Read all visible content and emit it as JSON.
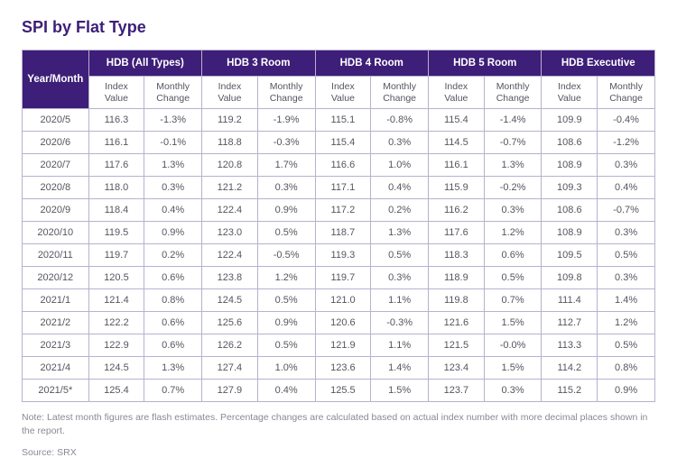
{
  "title": "SPI by Flat Type",
  "title_color": "#3d1e78",
  "header_bg": "#3d1e78",
  "border_color": "#b9b0cf",
  "text_color": "#555560",
  "note_color": "#8b8894",
  "ym_header": "Year/Month",
  "sub_iv": "Index Value",
  "sub_mc": "Monthly Change",
  "groups": [
    "HDB (All Types)",
    "HDB 3 Room",
    "HDB 4 Room",
    "HDB 5 Room",
    "HDB Executive"
  ],
  "rows": [
    {
      "ym": "2020/5",
      "v": [
        "116.3",
        "-1.3%",
        "119.2",
        "-1.9%",
        "115.1",
        "-0.8%",
        "115.4",
        "-1.4%",
        "109.9",
        "-0.4%"
      ]
    },
    {
      "ym": "2020/6",
      "v": [
        "116.1",
        "-0.1%",
        "118.8",
        "-0.3%",
        "115.4",
        "0.3%",
        "114.5",
        "-0.7%",
        "108.6",
        "-1.2%"
      ]
    },
    {
      "ym": "2020/7",
      "v": [
        "117.6",
        "1.3%",
        "120.8",
        "1.7%",
        "116.6",
        "1.0%",
        "116.1",
        "1.3%",
        "108.9",
        "0.3%"
      ]
    },
    {
      "ym": "2020/8",
      "v": [
        "118.0",
        "0.3%",
        "121.2",
        "0.3%",
        "117.1",
        "0.4%",
        "115.9",
        "-0.2%",
        "109.3",
        "0.4%"
      ]
    },
    {
      "ym": "2020/9",
      "v": [
        "118.4",
        "0.4%",
        "122.4",
        "0.9%",
        "117.2",
        "0.2%",
        "116.2",
        "0.3%",
        "108.6",
        "-0.7%"
      ]
    },
    {
      "ym": "2020/10",
      "v": [
        "119.5",
        "0.9%",
        "123.0",
        "0.5%",
        "118.7",
        "1.3%",
        "117.6",
        "1.2%",
        "108.9",
        "0.3%"
      ]
    },
    {
      "ym": "2020/11",
      "v": [
        "119.7",
        "0.2%",
        "122.4",
        "-0.5%",
        "119.3",
        "0.5%",
        "118.3",
        "0.6%",
        "109.5",
        "0.5%"
      ]
    },
    {
      "ym": "2020/12",
      "v": [
        "120.5",
        "0.6%",
        "123.8",
        "1.2%",
        "119.7",
        "0.3%",
        "118.9",
        "0.5%",
        "109.8",
        "0.3%"
      ]
    },
    {
      "ym": "2021/1",
      "v": [
        "121.4",
        "0.8%",
        "124.5",
        "0.5%",
        "121.0",
        "1.1%",
        "119.8",
        "0.7%",
        "111.4",
        "1.4%"
      ]
    },
    {
      "ym": "2021/2",
      "v": [
        "122.2",
        "0.6%",
        "125.6",
        "0.9%",
        "120.6",
        "-0.3%",
        "121.6",
        "1.5%",
        "112.7",
        "1.2%"
      ]
    },
    {
      "ym": "2021/3",
      "v": [
        "122.9",
        "0.6%",
        "126.2",
        "0.5%",
        "121.9",
        "1.1%",
        "121.5",
        "-0.0%",
        "113.3",
        "0.5%"
      ]
    },
    {
      "ym": "2021/4",
      "v": [
        "124.5",
        "1.3%",
        "127.4",
        "1.0%",
        "123.6",
        "1.4%",
        "123.4",
        "1.5%",
        "114.2",
        "0.8%"
      ]
    },
    {
      "ym": "2021/5*",
      "v": [
        "125.4",
        "0.7%",
        "127.9",
        "0.4%",
        "125.5",
        "1.5%",
        "123.7",
        "0.3%",
        "115.2",
        "0.9%"
      ]
    }
  ],
  "note": "Note: Latest month figures are flash estimates. Percentage changes are calculated based on actual index number with more decimal places shown in the report.",
  "source": "Source: SRX"
}
